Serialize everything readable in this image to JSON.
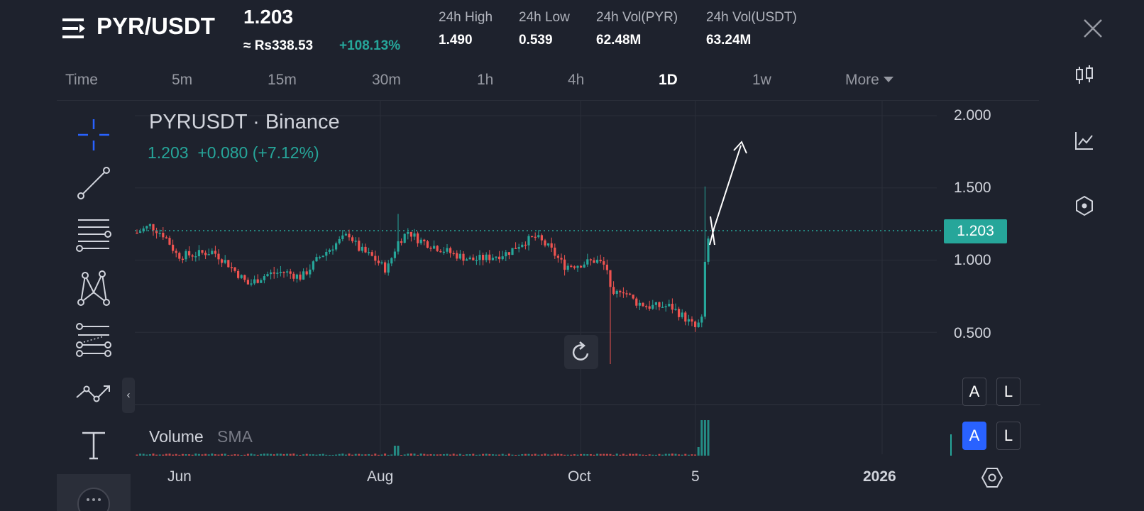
{
  "header": {
    "pair": "PYR/USDT",
    "price": "1.203",
    "approx_local": "≈ Rs338.53",
    "change_pct": "+108.13%",
    "stats": [
      {
        "label": "24h High",
        "value": "1.490"
      },
      {
        "label": "24h Low",
        "value": "0.539"
      },
      {
        "label": "24h Vol(PYR)",
        "value": "62.48M"
      },
      {
        "label": "24h Vol(USDT)",
        "value": "63.24M"
      }
    ]
  },
  "tabs": [
    {
      "label": "Time"
    },
    {
      "label": "5m"
    },
    {
      "label": "15m"
    },
    {
      "label": "30m"
    },
    {
      "label": "1h"
    },
    {
      "label": "4h"
    },
    {
      "label": "1D",
      "active": true
    },
    {
      "label": "1w"
    },
    {
      "label": "More"
    }
  ],
  "tools": [
    "crosshair-icon",
    "trend-line-icon",
    "horizontal-lines-icon",
    "pattern-icon",
    "fib-icon",
    "forecast-icon",
    "text-icon"
  ],
  "side_icons": [
    "candles-icon",
    "indicators-icon",
    "hexagon-settings-icon"
  ],
  "chart": {
    "symbol_title": "PYRUSDT · Binance",
    "ohlc_last": "1.203",
    "ohlc_change": "+0.080 (+7.12%)",
    "last_price_tag": "1.203",
    "price_axis": [
      "2.000",
      "1.500",
      "1.000",
      "0.500"
    ],
    "time_axis": [
      {
        "label": "Jun",
        "bold": false
      },
      {
        "label": "Aug",
        "bold": false
      },
      {
        "label": "Oct",
        "bold": false
      },
      {
        "label": "5",
        "bold": false
      },
      {
        "label": "2026",
        "bold": true
      }
    ],
    "scale_buttons_top": [
      "A",
      "L"
    ],
    "scale_buttons_bottom": [
      "A",
      "L"
    ],
    "volume_label": "Volume",
    "volume_sma": "SMA"
  },
  "colors": {
    "up": "#26a69a",
    "down": "#ef5350",
    "accent": "#2962ff",
    "background": "#1e222d"
  }
}
